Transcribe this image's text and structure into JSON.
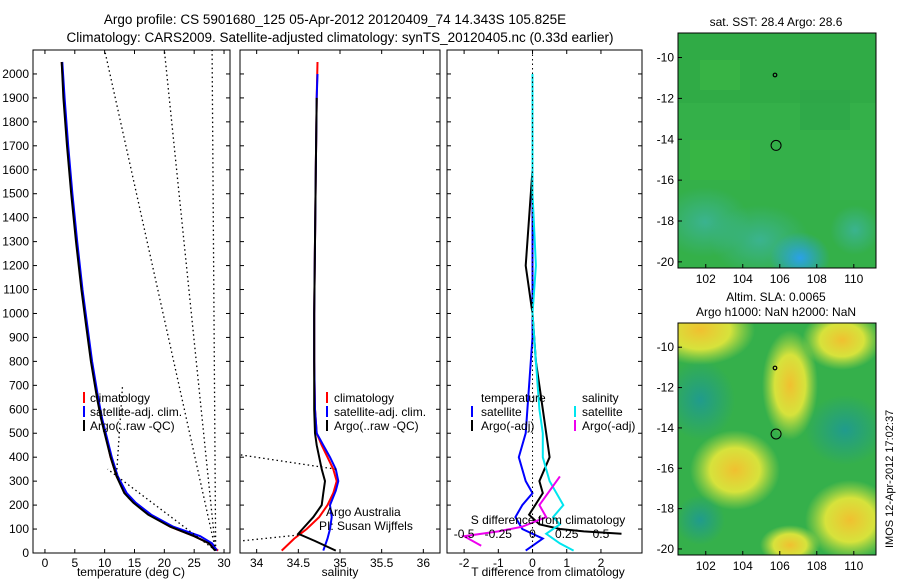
{
  "header": {
    "line1": "Argo profile: CS 5901680_125 05-Apr-2012 20120409_74 14.343S 105.825E",
    "line2": "Climatology: CARS2009. Satellite-adjusted climatology: synTS_20120405.nc (0.33d earlier)"
  },
  "chart_data": [
    {
      "type": "line",
      "id": "temperature",
      "xlabel": "temperature (deg C)",
      "ylabel": "",
      "xlim": [
        -2,
        31
      ],
      "ylim": [
        2100,
        0
      ],
      "xticks": [
        0,
        5,
        10,
        15,
        20,
        25,
        30
      ],
      "yticks": [
        0,
        100,
        200,
        300,
        400,
        500,
        600,
        700,
        800,
        900,
        1000,
        1100,
        1200,
        1300,
        1400,
        1500,
        1600,
        1700,
        1800,
        1900,
        2000
      ],
      "legend": [
        "climatology",
        "satellite-adj. clim.",
        "Argo(..raw -QC)"
      ],
      "series": [
        {
          "name": "climatology",
          "color": "#ff0000",
          "points": [
            [
              29,
              10
            ],
            [
              27.5,
              40
            ],
            [
              25,
              70
            ],
            [
              21,
              110
            ],
            [
              17.5,
              160
            ],
            [
              15,
              210
            ],
            [
              13.5,
              250
            ],
            [
              12,
              320
            ],
            [
              11,
              400
            ],
            [
              10.3,
              480
            ],
            [
              9.5,
              560
            ],
            [
              8.8,
              650
            ],
            [
              7.8,
              800
            ],
            [
              7,
              950
            ],
            [
              6.2,
              1100
            ],
            [
              5.3,
              1300
            ],
            [
              4.5,
              1500
            ],
            [
              3.8,
              1700
            ],
            [
              3.2,
              1900
            ],
            [
              2.8,
              2050
            ]
          ]
        },
        {
          "name": "satellite-adj. clim.",
          "color": "#0000ff",
          "points": [
            [
              28.8,
              10
            ],
            [
              28,
              40
            ],
            [
              26,
              70
            ],
            [
              21.5,
              110
            ],
            [
              17.8,
              160
            ],
            [
              15.2,
              210
            ],
            [
              13.7,
              250
            ],
            [
              12.2,
              320
            ],
            [
              11.2,
              400
            ],
            [
              10.4,
              480
            ],
            [
              9.6,
              560
            ],
            [
              8.9,
              650
            ],
            [
              7.9,
              800
            ],
            [
              7.1,
              950
            ],
            [
              6.3,
              1100
            ],
            [
              5.4,
              1300
            ],
            [
              4.6,
              1500
            ],
            [
              3.9,
              1700
            ],
            [
              3.3,
              1900
            ],
            [
              2.9,
              2050
            ]
          ]
        },
        {
          "name": "Argo(..raw -QC)",
          "color": "#000000",
          "points": [
            [
              28.5,
              10
            ],
            [
              27.5,
              40
            ],
            [
              25,
              70
            ],
            [
              21,
              110
            ],
            [
              17.3,
              160
            ],
            [
              14.8,
              210
            ],
            [
              13.3,
              250
            ],
            [
              12,
              320
            ],
            [
              11,
              400
            ],
            [
              10.2,
              480
            ],
            [
              9.4,
              560
            ],
            [
              8.7,
              650
            ],
            [
              7.7,
              800
            ],
            [
              6.9,
              950
            ],
            [
              6.1,
              1100
            ],
            [
              5.2,
              1300
            ],
            [
              4.4,
              1500
            ],
            [
              3.7,
              1700
            ],
            [
              3.1,
              1900
            ],
            [
              2.8,
              2050
            ]
          ]
        }
      ]
    },
    {
      "type": "line",
      "id": "salinity",
      "xlabel": "salinity",
      "xlim": [
        33.8,
        36.2
      ],
      "ylim": [
        2100,
        0
      ],
      "xticks": [
        34,
        34.5,
        35,
        35.5,
        36
      ],
      "legend": [
        "climatology",
        "satellite-adj. clim.",
        "Argo(..raw -QC)"
      ],
      "annotation": [
        "Argo Australia",
        "PI: Susan Wijffels"
      ],
      "series": [
        {
          "name": "climatology",
          "color": "#ff0000",
          "points": [
            [
              34.3,
              10
            ],
            [
              34.45,
              60
            ],
            [
              34.6,
              100
            ],
            [
              34.75,
              150
            ],
            [
              34.85,
              200
            ],
            [
              34.92,
              250
            ],
            [
              34.96,
              300
            ],
            [
              34.92,
              350
            ],
            [
              34.85,
              400
            ],
            [
              34.78,
              450
            ],
            [
              34.72,
              500
            ],
            [
              34.7,
              600
            ],
            [
              34.69,
              800
            ],
            [
              34.69,
              1000
            ],
            [
              34.7,
              1300
            ],
            [
              34.71,
              1600
            ],
            [
              34.72,
              1900
            ],
            [
              34.73,
              2050
            ]
          ]
        },
        {
          "name": "satellite-adj. clim.",
          "color": "#0000ff",
          "points": [
            [
              34.8,
              10
            ],
            [
              34.85,
              60
            ],
            [
              34.88,
              100
            ],
            [
              34.9,
              150
            ],
            [
              34.88,
              200
            ],
            [
              34.95,
              260
            ],
            [
              34.98,
              300
            ],
            [
              34.95,
              350
            ],
            [
              34.88,
              400
            ],
            [
              34.8,
              450
            ],
            [
              34.72,
              500
            ],
            [
              34.7,
              600
            ],
            [
              34.69,
              800
            ],
            [
              34.69,
              1000
            ],
            [
              34.7,
              1300
            ],
            [
              34.71,
              1600
            ],
            [
              34.72,
              1900
            ],
            [
              34.73,
              2000
            ]
          ]
        },
        {
          "name": "Argo(..raw -QC)",
          "color": "#000000",
          "points": [
            [
              34.95,
              10
            ],
            [
              34.7,
              50
            ],
            [
              34.5,
              80
            ],
            [
              34.55,
              100
            ],
            [
              34.68,
              150
            ],
            [
              34.78,
              200
            ],
            [
              34.8,
              250
            ],
            [
              34.82,
              300
            ],
            [
              34.78,
              350
            ],
            [
              34.75,
              400
            ],
            [
              34.72,
              450
            ],
            [
              34.7,
              500
            ],
            [
              34.69,
              600
            ],
            [
              34.69,
              800
            ],
            [
              34.69,
              1000
            ],
            [
              34.7,
              1300
            ],
            [
              34.71,
              1600
            ],
            [
              34.72,
              1900
            ]
          ]
        }
      ]
    },
    {
      "type": "line",
      "id": "difference",
      "xlabel": "T difference from climatology",
      "xlabel_top": "S difference from climatology",
      "xlim": [
        -2.5,
        3.2
      ],
      "ylim": [
        2100,
        0
      ],
      "xticks": [
        -2,
        -1,
        0,
        1,
        2
      ],
      "s_ticks": [
        "-0.5",
        "-0.25",
        "0",
        "0.25",
        "0.5"
      ],
      "legend_titles": [
        "temperature",
        "salinity"
      ],
      "legend": [
        {
          "label": "satellite",
          "color": "#0000ff"
        },
        {
          "label": "Argo(-adj)",
          "color": "#000000"
        },
        {
          "label": "satellite",
          "color": "#00e5ee"
        },
        {
          "label": "Argo(-adj)",
          "color": "#ee00ee"
        }
      ],
      "series": [
        {
          "name": "T satellite",
          "color": "#0000ff",
          "points": [
            [
              -0.2,
              10
            ],
            [
              0.3,
              60
            ],
            [
              -0.3,
              100
            ],
            [
              -0.5,
              150
            ],
            [
              -0.3,
              200
            ],
            [
              0,
              250
            ],
            [
              -0.2,
              300
            ],
            [
              -0.4,
              400
            ],
            [
              -0.2,
              500
            ],
            [
              -0.1,
              700
            ],
            [
              0,
              900
            ],
            [
              0,
              1100
            ],
            [
              0,
              1400
            ],
            [
              0,
              1700
            ],
            [
              0,
              2000
            ]
          ]
        },
        {
          "name": "T Argo(-adj)",
          "color": "#000000",
          "points": [
            [
              2.6,
              80
            ],
            [
              1.5,
              90
            ],
            [
              0.8,
              100
            ],
            [
              0.2,
              120
            ],
            [
              -0.1,
              160
            ],
            [
              0.3,
              250
            ],
            [
              0.2,
              300
            ],
            [
              0.5,
              400
            ],
            [
              0.4,
              500
            ],
            [
              0.3,
              600
            ],
            [
              0.1,
              800
            ],
            [
              0,
              1000
            ],
            [
              -0.2,
              1200
            ],
            [
              -0.1,
              1400
            ],
            [
              0,
              1600
            ],
            [
              0,
              1800
            ],
            [
              0,
              2000
            ]
          ]
        },
        {
          "name": "S satellite",
          "color": "#00e5ee",
          "points": [
            [
              1.2,
              10
            ],
            [
              0.8,
              40
            ],
            [
              0.4,
              80
            ],
            [
              0.8,
              120
            ],
            [
              0.6,
              150
            ],
            [
              0.9,
              200
            ],
            [
              0.5,
              300
            ],
            [
              0.3,
              400
            ],
            [
              0.3,
              500
            ],
            [
              0.2,
              600
            ],
            [
              0.1,
              800
            ],
            [
              0,
              1000
            ],
            [
              0.1,
              1200
            ],
            [
              0,
              1500
            ],
            [
              0,
              1800
            ],
            [
              0,
              2000
            ]
          ]
        },
        {
          "name": "S Argo(-adj)",
          "color": "#ee00ee",
          "points": [
            [
              -1.5,
              30
            ],
            [
              -2.0,
              70
            ],
            [
              -1.0,
              90
            ],
            [
              -0.3,
              110
            ],
            [
              0.4,
              150
            ],
            [
              0.2,
              200
            ],
            [
              0.6,
              280
            ],
            [
              0.8,
              320
            ]
          ]
        }
      ]
    },
    {
      "type": "heatmap",
      "id": "sst_map",
      "title": "sat. SST: 28.4 Argo: 28.6",
      "xlim": [
        100.5,
        111.2
      ],
      "ylim": [
        -20.3,
        -8.8
      ],
      "xticks": [
        102,
        104,
        106,
        108,
        110
      ],
      "yticks": [
        -10,
        -12,
        -14,
        -16,
        -18,
        -20
      ],
      "marker": {
        "lon": 105.8,
        "lat": -14.3
      }
    },
    {
      "type": "heatmap",
      "id": "sla_map",
      "title": "Altim. SLA: 0.0065",
      "subtitle": "Argo h1000: NaN h2000: NaN",
      "xlim": [
        100.5,
        111.2
      ],
      "ylim": [
        -20.3,
        -8.8
      ],
      "xticks": [
        102,
        104,
        106,
        108,
        110
      ],
      "yticks": [
        -10,
        -12,
        -14,
        -16,
        -18,
        -20
      ],
      "marker": {
        "lon": 105.8,
        "lat": -14.3
      }
    }
  ],
  "side_label": "IMOS 12-Apr-2012 17:02:37",
  "colors": {
    "sst_base": "#33b044",
    "sst_cold": "#2aa0d8",
    "sla_base": "#2fb04a",
    "sla_high": "#f2e030",
    "sla_low": "#27a58a"
  }
}
